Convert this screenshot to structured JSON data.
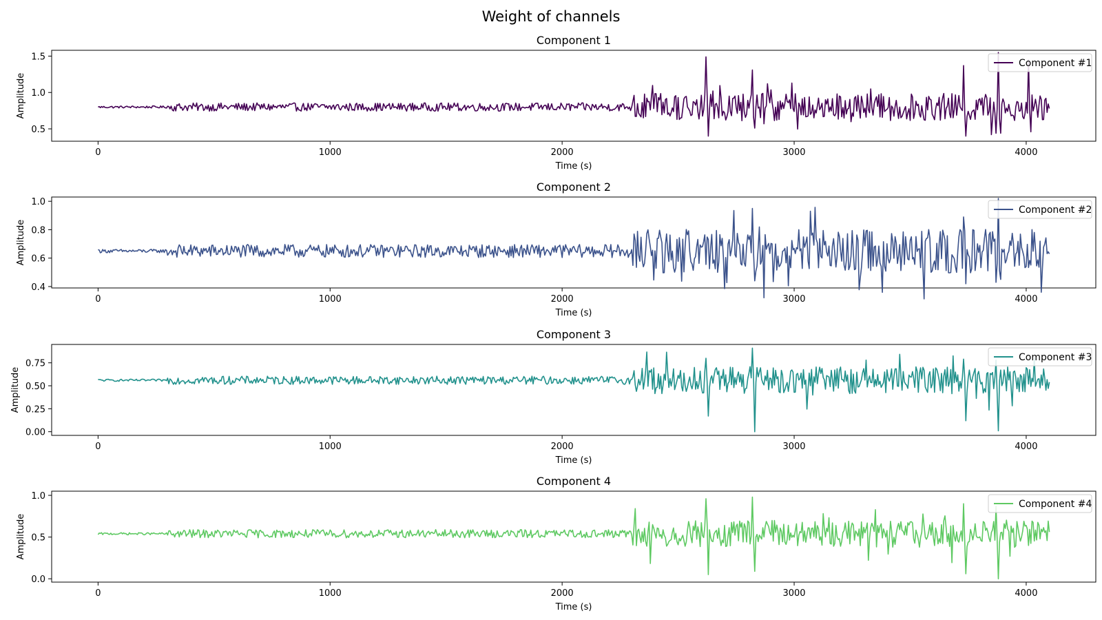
{
  "figure": {
    "title": "Weight of channels"
  },
  "chart_data": [
    {
      "type": "line",
      "title": "Component 1",
      "xlabel": "Time (s)",
      "ylabel": "Amplitude",
      "xlim": [
        -200,
        4300
      ],
      "ylim": [
        0.33,
        1.58
      ],
      "xticks": [
        0,
        1000,
        2000,
        3000,
        4000
      ],
      "yticks": [
        0.5,
        1.0,
        1.5
      ],
      "ytick_labels": [
        "0.5",
        "1.0",
        "1.5"
      ],
      "legend_position": "upper right",
      "series": [
        {
          "name": "Component #1",
          "color": "#440154",
          "baseline": 0.8,
          "x": [
            0,
            2300,
            2620,
            2630,
            2820,
            2830,
            3730,
            3740,
            3870,
            3880,
            3890,
            4010,
            4020,
            4100
          ],
          "y": [
            0.8,
            0.8,
            1.49,
            0.4,
            1.31,
            0.51,
            1.37,
            0.4,
            0.44,
            1.55,
            0.44,
            1.45,
            0.46,
            0.78
          ]
        }
      ]
    },
    {
      "type": "line",
      "title": "Component 2",
      "xlabel": "Time (s)",
      "ylabel": "Amplitude",
      "xlim": [
        -200,
        4300
      ],
      "ylim": [
        0.39,
        1.03
      ],
      "xticks": [
        0,
        1000,
        2000,
        3000,
        4000
      ],
      "yticks": [
        0.4,
        0.6,
        0.8,
        1.0
      ],
      "ytick_labels": [
        "0.4",
        "0.6",
        "0.8",
        "1.0"
      ],
      "legend_position": "upper right",
      "series": [
        {
          "name": "Component #2",
          "color": "#3b528b",
          "baseline": 0.65,
          "x": [
            0,
            2300,
            2820,
            2830,
            3730,
            3740,
            3870,
            3880,
            3890,
            4100
          ],
          "y": [
            0.66,
            0.66,
            0.95,
            0.44,
            0.89,
            0.42,
            0.43,
            1.02,
            0.45,
            0.63
          ]
        }
      ]
    },
    {
      "type": "line",
      "title": "Component 3",
      "xlabel": "Time (s)",
      "ylabel": "Amplitude",
      "xlim": [
        -200,
        4300
      ],
      "ylim": [
        -0.04,
        0.95
      ],
      "xticks": [
        0,
        1000,
        2000,
        3000,
        4000
      ],
      "yticks": [
        0.0,
        0.25,
        0.5,
        0.75
      ],
      "ytick_labels": [
        "0.00",
        "0.25",
        "0.50",
        "0.75"
      ],
      "legend_position": "upper right",
      "series": [
        {
          "name": "Component #3",
          "color": "#21918c",
          "baseline": 0.56,
          "x": [
            0,
            2300,
            2620,
            2630,
            2820,
            2830,
            3730,
            3740,
            3870,
            3880,
            4100
          ],
          "y": [
            0.57,
            0.57,
            0.8,
            0.17,
            0.91,
            0.0,
            0.79,
            0.12,
            0.78,
            0.01,
            0.54
          ]
        }
      ]
    },
    {
      "type": "line",
      "title": "Component 4",
      "xlabel": "Time (s)",
      "ylabel": "Amplitude",
      "xlim": [
        -200,
        4300
      ],
      "ylim": [
        -0.04,
        1.05
      ],
      "xticks": [
        0,
        1000,
        2000,
        3000,
        4000
      ],
      "yticks": [
        0.0,
        0.5,
        1.0
      ],
      "ytick_labels": [
        "0.0",
        "0.5",
        "1.0"
      ],
      "legend_position": "upper right",
      "series": [
        {
          "name": "Component #4",
          "color": "#5ec962",
          "baseline": 0.54,
          "x": [
            0,
            2300,
            2620,
            2630,
            2820,
            2830,
            3730,
            3740,
            3870,
            3880,
            4100
          ],
          "y": [
            0.53,
            0.53,
            0.96,
            0.05,
            0.98,
            0.09,
            0.9,
            0.06,
            0.87,
            0.0,
            0.56
          ]
        }
      ]
    }
  ]
}
